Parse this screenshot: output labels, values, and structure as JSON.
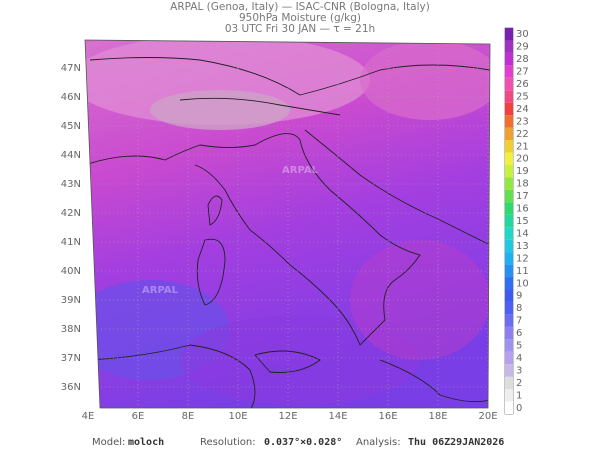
{
  "header": {
    "lines": [
      "ARPAL (Genoa, Italy)  —  ISAC-CNR (Bologna, Italy)",
      "950hPa Moisture (g/kg)",
      "03 UTC Fri 30 JAN  —  τ = 21h"
    ]
  },
  "map": {
    "lat_labels": [
      "36N",
      "37N",
      "38N",
      "39N",
      "40N",
      "41N",
      "42N",
      "43N",
      "44N",
      "45N",
      "46N",
      "47N"
    ],
    "lon_labels": [
      "4E",
      "6E",
      "8E",
      "10E",
      "12E",
      "14E",
      "16E",
      "18E",
      "20E"
    ],
    "watermark": "ARPAL"
  },
  "colorbar": {
    "labels": [
      0,
      1,
      2,
      3,
      4,
      5,
      6,
      7,
      8,
      9,
      10,
      11,
      12,
      13,
      14,
      15,
      16,
      17,
      18,
      19,
      20,
      21,
      22,
      23,
      24,
      25,
      26,
      27,
      28,
      29,
      30
    ]
  },
  "footer": {
    "model_label": "Model:",
    "model": "moloch",
    "resolution_label": "Resolution:",
    "resolution": "0.037°×0.028°",
    "analysis_label": "Analysis:",
    "analysis": "Thu 06Z29JAN2026"
  }
}
